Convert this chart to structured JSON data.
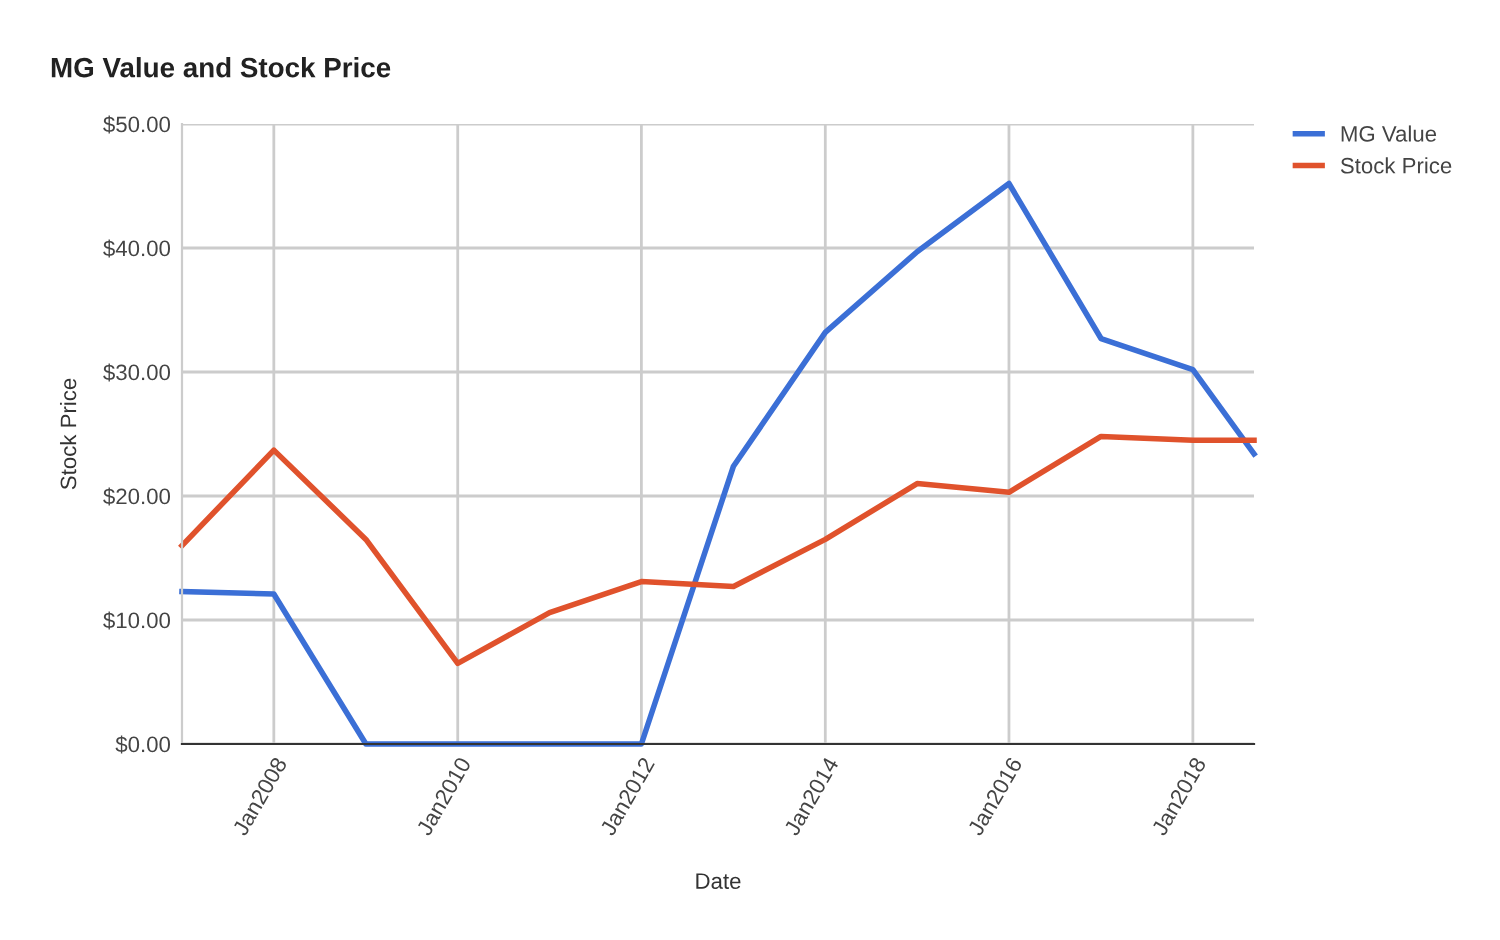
{
  "chart_data": {
    "type": "line",
    "title": "MG Value and Stock Price",
    "xlabel": "Date",
    "ylabel": "Stock Price",
    "x": [
      "2007-01",
      "2008-01",
      "2009-01",
      "2010-01",
      "2011-01",
      "2012-01",
      "2013-01",
      "2014-01",
      "2015-01",
      "2016-01",
      "2017-01",
      "2018-01",
      "2018-09"
    ],
    "series": [
      {
        "name": "MG Value",
        "color": "#3b6fd6",
        "values": [
          12.3,
          12.1,
          0,
          0,
          0,
          0,
          22.4,
          33.2,
          39.7,
          45.2,
          32.7,
          30.2,
          23.4
        ]
      },
      {
        "name": "Stock Price",
        "color": "#e0522c",
        "values": [
          16.0,
          23.7,
          16.5,
          6.5,
          10.6,
          13.1,
          12.7,
          16.5,
          21.0,
          20.3,
          24.8,
          24.5,
          24.5
        ]
      }
    ],
    "xlim": [
      "2007-01",
      "2018-09"
    ],
    "xticks": [
      {
        "value": "2008-01",
        "label": "Jan2008"
      },
      {
        "value": "2010-01",
        "label": "Jan2010"
      },
      {
        "value": "2012-01",
        "label": "Jan2012"
      },
      {
        "value": "2014-01",
        "label": "Jan2014"
      },
      {
        "value": "2016-01",
        "label": "Jan2016"
      },
      {
        "value": "2018-01",
        "label": "Jan2018"
      }
    ],
    "ylim": [
      0,
      50
    ],
    "yticks": [
      {
        "value": 0,
        "label": "$0.00"
      },
      {
        "value": 10,
        "label": "$10.00"
      },
      {
        "value": 20,
        "label": "$20.00"
      },
      {
        "value": 30,
        "label": "$30.00"
      },
      {
        "value": 40,
        "label": "$40.00"
      },
      {
        "value": 50,
        "label": "$50.00"
      }
    ],
    "grid": true,
    "legend": "top right",
    "marker": "none",
    "line_style": "solid"
  }
}
